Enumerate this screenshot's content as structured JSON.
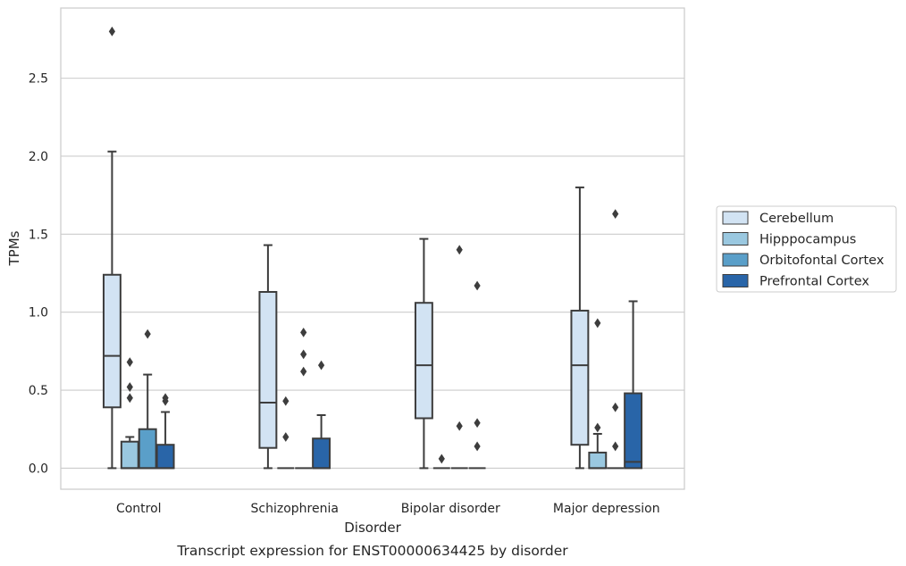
{
  "chart_data": {
    "type": "box",
    "title": "Transcript expression for ENST00000634425 by disorder",
    "xlabel": "Disorder",
    "ylabel": "TPMs",
    "ylim": [
      -0.135,
      2.95
    ],
    "yticks": [
      0.0,
      0.5,
      1.0,
      1.5,
      2.0,
      2.5
    ],
    "ytick_labels": [
      "0.0",
      "0.5",
      "1.0",
      "1.5",
      "2.0",
      "2.5"
    ],
    "grid": "horizontal",
    "legend_position": "right",
    "categories": [
      "Control",
      "Schizophrenia",
      "Bipolar disorder",
      "Major depression"
    ],
    "series": [
      {
        "name": "Cerebellum",
        "color": "#d2e3f3",
        "boxes": [
          {
            "whisker_low": 0.0,
            "q1": 0.39,
            "median": 0.72,
            "q3": 1.24,
            "whisker_high": 2.03,
            "outliers": [
              2.8
            ]
          },
          {
            "whisker_low": 0.0,
            "q1": 0.13,
            "median": 0.42,
            "q3": 1.13,
            "whisker_high": 1.43,
            "outliers": []
          },
          {
            "whisker_low": 0.0,
            "q1": 0.32,
            "median": 0.66,
            "q3": 1.06,
            "whisker_high": 1.47,
            "outliers": []
          },
          {
            "whisker_low": 0.0,
            "q1": 0.15,
            "median": 0.66,
            "q3": 1.01,
            "whisker_high": 1.8,
            "outliers": []
          }
        ]
      },
      {
        "name": "Hipppocampus",
        "color": "#9ac8e0",
        "boxes": [
          {
            "whisker_low": 0.0,
            "q1": 0.0,
            "median": 0.0,
            "q3": 0.17,
            "whisker_high": 0.2,
            "outliers": [
              0.45,
              0.52,
              0.68
            ]
          },
          {
            "whisker_low": 0.0,
            "q1": 0.0,
            "median": 0.0,
            "q3": 0.0,
            "whisker_high": 0.0,
            "outliers": [
              0.2,
              0.43
            ]
          },
          {
            "whisker_low": 0.0,
            "q1": 0.0,
            "median": 0.0,
            "q3": 0.0,
            "whisker_high": 0.0,
            "outliers": [
              0.06
            ]
          },
          {
            "whisker_low": 0.0,
            "q1": 0.0,
            "median": 0.0,
            "q3": 0.1,
            "whisker_high": 0.22,
            "outliers": [
              0.26,
              0.93
            ]
          }
        ]
      },
      {
        "name": "Orbitofontal Cortex",
        "color": "#5a9fc9",
        "boxes": [
          {
            "whisker_low": 0.0,
            "q1": 0.0,
            "median": 0.0,
            "q3": 0.25,
            "whisker_high": 0.6,
            "outliers": [
              0.86
            ]
          },
          {
            "whisker_low": 0.0,
            "q1": 0.0,
            "median": 0.0,
            "q3": 0.0,
            "whisker_high": 0.0,
            "outliers": [
              0.62,
              0.73,
              0.87
            ]
          },
          {
            "whisker_low": 0.0,
            "q1": 0.0,
            "median": 0.0,
            "q3": 0.0,
            "whisker_high": 0.0,
            "outliers": [
              0.27,
              1.4
            ]
          },
          {
            "whisker_low": 0.0,
            "q1": 0.0,
            "median": 0.0,
            "q3": 0.0,
            "whisker_high": 0.0,
            "outliers": [
              0.14,
              0.39,
              1.63
            ]
          }
        ]
      },
      {
        "name": "Prefrontal Cortex",
        "color": "#2965a8",
        "boxes": [
          {
            "whisker_low": 0.0,
            "q1": 0.0,
            "median": 0.0,
            "q3": 0.15,
            "whisker_high": 0.36,
            "outliers": [
              0.43,
              0.45
            ]
          },
          {
            "whisker_low": 0.0,
            "q1": 0.0,
            "median": 0.0,
            "q3": 0.19,
            "whisker_high": 0.34,
            "outliers": [
              0.66
            ]
          },
          {
            "whisker_low": 0.0,
            "q1": 0.0,
            "median": 0.0,
            "q3": 0.0,
            "whisker_high": 0.0,
            "outliers": [
              0.14,
              0.29,
              1.17
            ]
          },
          {
            "whisker_low": 0.0,
            "q1": 0.0,
            "median": 0.04,
            "q3": 0.48,
            "whisker_high": 1.07,
            "outliers": []
          }
        ]
      }
    ]
  }
}
